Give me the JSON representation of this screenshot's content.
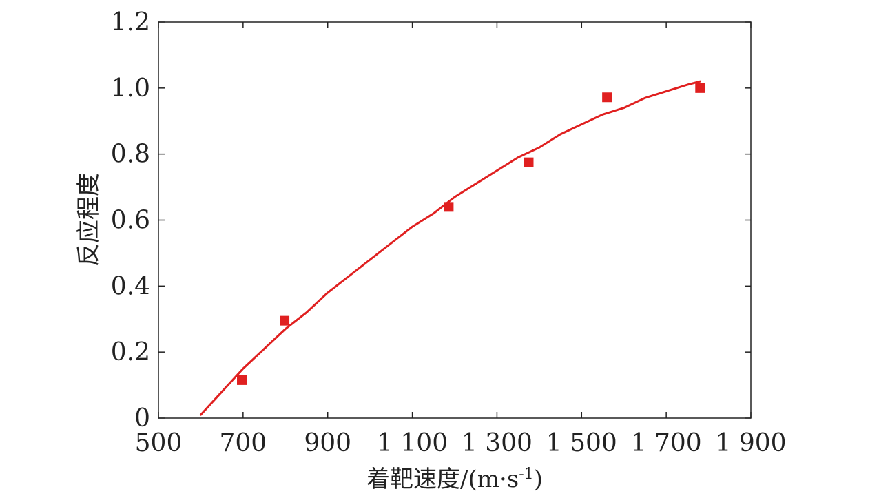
{
  "chart_data": {
    "type": "scatter",
    "title": "",
    "xlabel": "着靶速度/(m·s",
    "xlabel_sup": "-1",
    "xlabel_close": ")",
    "ylabel": "反应程度",
    "xlim": [
      500,
      1900
    ],
    "ylim": [
      0,
      1.2
    ],
    "x_ticks": [
      500,
      700,
      900,
      1100,
      1300,
      1500,
      1700,
      1900
    ],
    "x_tick_labels": [
      "500",
      "700",
      "900",
      "1 100",
      "1 300",
      "1 500",
      "1 700",
      "1 900"
    ],
    "y_ticks": [
      0,
      0.2,
      0.4,
      0.6,
      0.8,
      1.0,
      1.2
    ],
    "y_tick_labels": [
      "0",
      "0.2",
      "0.4",
      "0.6",
      "0.8",
      "1.0",
      "1.2"
    ],
    "grid": false,
    "colors": {
      "marker": "#e02020",
      "fit": "#e02020",
      "axis": "#222222"
    },
    "series": [
      {
        "kind": "points",
        "marker": "square",
        "x": [
          697,
          798,
          1186,
          1375,
          1560,
          1780
        ],
        "y": [
          0.115,
          0.295,
          0.64,
          0.775,
          0.972,
          1.0
        ]
      },
      {
        "kind": "fit-line",
        "x": [
          600,
          650,
          700,
          750,
          800,
          850,
          900,
          950,
          1000,
          1050,
          1100,
          1150,
          1200,
          1250,
          1300,
          1350,
          1400,
          1450,
          1500,
          1550,
          1600,
          1650,
          1700,
          1750,
          1780
        ],
        "y": [
          0.01,
          0.08,
          0.15,
          0.21,
          0.27,
          0.32,
          0.38,
          0.43,
          0.48,
          0.53,
          0.58,
          0.62,
          0.67,
          0.71,
          0.75,
          0.79,
          0.82,
          0.86,
          0.89,
          0.92,
          0.94,
          0.97,
          0.99,
          1.01,
          1.02
        ]
      }
    ]
  }
}
